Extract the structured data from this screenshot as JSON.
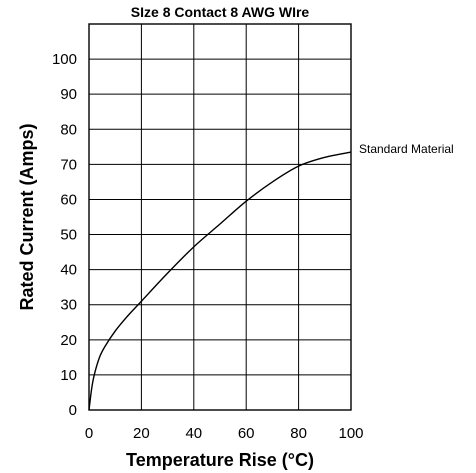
{
  "chart_data": {
    "type": "line",
    "title": "SIze 8 Contact 8 AWG WIre",
    "xlabel": "Temperature Rise (°C)",
    "ylabel": "Rated Current (Amps)",
    "xlim": [
      0,
      100
    ],
    "ylim": [
      0,
      110
    ],
    "xticks": [
      0,
      20,
      40,
      60,
      80,
      100
    ],
    "yticks": [
      0,
      10,
      20,
      30,
      40,
      50,
      60,
      70,
      80,
      90,
      100
    ],
    "grid": true,
    "series": [
      {
        "name": "Standard Material",
        "x": [
          0,
          1,
          2,
          4,
          6,
          10,
          15,
          20,
          30,
          40,
          50,
          60,
          70,
          80,
          90,
          100
        ],
        "y": [
          0,
          6,
          10,
          15,
          18,
          22.5,
          27,
          31,
          39,
          46.5,
          53,
          59.5,
          65,
          69.5,
          72,
          73.5
        ]
      }
    ]
  }
}
